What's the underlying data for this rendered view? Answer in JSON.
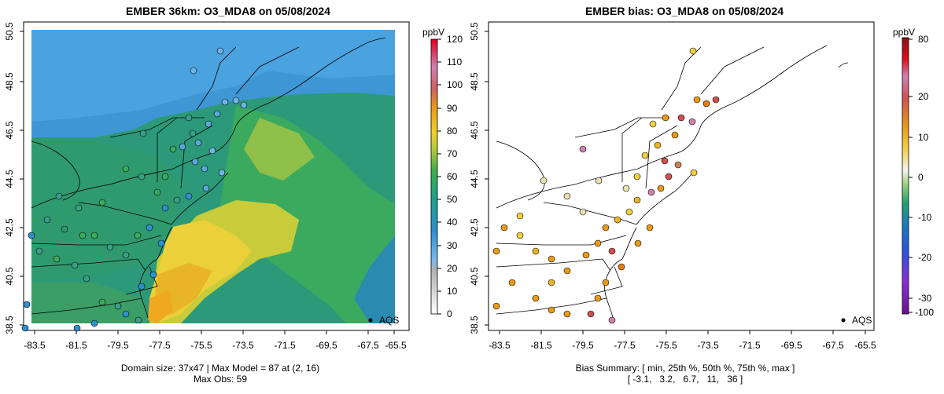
{
  "left_panel": {
    "title": "EMBER 36km: O3_MDA8 on 05/08/2024",
    "colorbar_unit": "ppbV",
    "colorbar_ticks": [
      "0",
      "10",
      "20",
      "30",
      "40",
      "50",
      "60",
      "70",
      "80",
      "90",
      "100",
      "110",
      "120"
    ],
    "legend_label": "AQS",
    "footer_line1": "Domain size: 37x47 | Max Model = 87 at (2, 16)",
    "footer_line2": "Max Obs: 59"
  },
  "right_panel": {
    "title": "EMBER bias: O3_MDA8 on 05/08/2024",
    "colorbar_unit": "ppbV",
    "colorbar_ticks": [
      "80",
      "20",
      "10",
      "0",
      "-10",
      "-20",
      "-30",
      "-100"
    ],
    "legend_label": "AQS",
    "footer_line1": "Bias Summary: [ min, 25th %, 50th %, 75th %, max ]",
    "footer_line2": "[ -3.1,   3.2,   6.7,   11,   36 ]"
  },
  "axes": {
    "x_ticks": [
      "-83.5",
      "-81.5",
      "-79.5",
      "-77.5",
      "-75.5",
      "-73.5",
      "-71.5",
      "-69.5",
      "-67.5",
      "-65.5"
    ],
    "y_ticks": [
      "38.5",
      "40.5",
      "42.5",
      "44.5",
      "46.5",
      "48.5",
      "50.5"
    ]
  },
  "colors": {
    "ozone_low": "#3f9fd8",
    "ozone_mid": "#2a9a6a",
    "ozone_high": "#f0c830",
    "bias_pos": "#e08a1a",
    "bias_neutral": "#e6e0b0"
  }
}
